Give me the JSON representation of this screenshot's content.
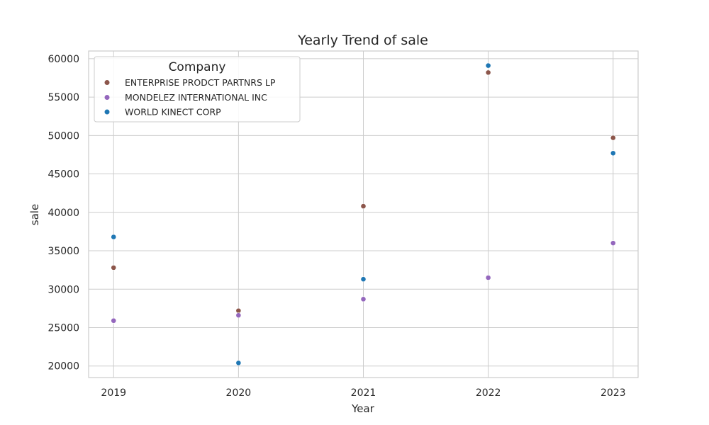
{
  "chart_data": {
    "type": "scatter",
    "title": "Yearly Trend of sale",
    "xlabel": "Year",
    "ylabel": "sale",
    "x": [
      2019,
      2020,
      2021,
      2022,
      2023
    ],
    "xlim": [
      2018.8,
      2023.2
    ],
    "ylim": [
      18500,
      61000
    ],
    "yticks": [
      20000,
      25000,
      30000,
      35000,
      40000,
      45000,
      50000,
      55000,
      60000
    ],
    "grid": true,
    "legend": {
      "title": "Company",
      "placement": "top-left"
    },
    "series": [
      {
        "name": "ENTERPRISE PRODCT PARTNRS LP",
        "color": "#8c564b",
        "values": [
          32800,
          27200,
          40800,
          58200,
          49700
        ]
      },
      {
        "name": "MONDELEZ INTERNATIONAL INC",
        "color": "#9467bd",
        "values": [
          25900,
          26600,
          28700,
          31500,
          36000
        ]
      },
      {
        "name": "WORLD KINECT CORP",
        "color": "#1f77b4",
        "values": [
          36800,
          20400,
          31300,
          59100,
          47700
        ]
      }
    ]
  }
}
